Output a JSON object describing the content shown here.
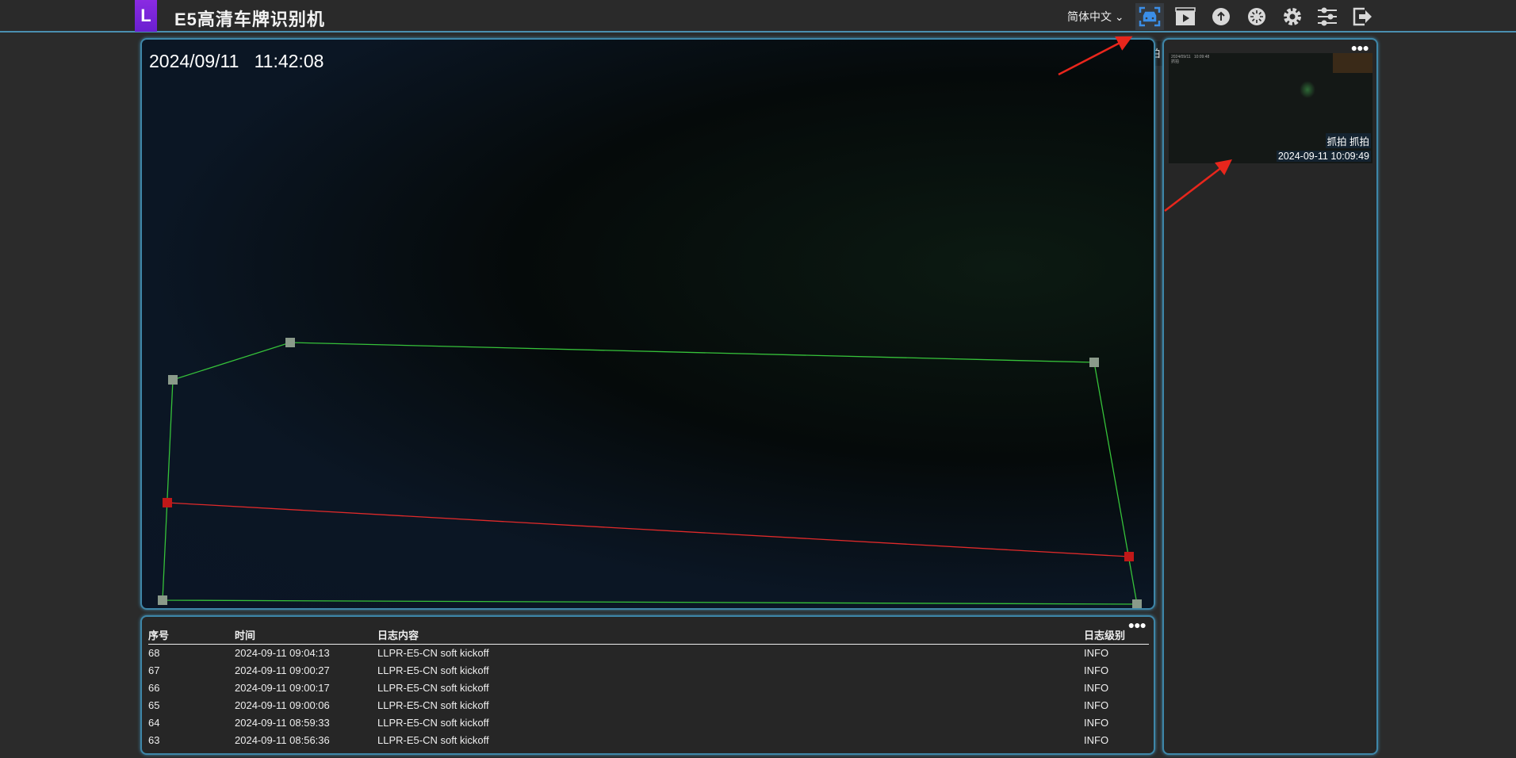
{
  "header": {
    "logo_letter": "L",
    "title": "E5高清车牌识别机",
    "language": "简体中文",
    "icons": [
      "capture-car-icon",
      "video-playback-icon",
      "upload-icon",
      "loading-icon",
      "settings-icon",
      "sliders-icon",
      "logout-icon"
    ],
    "tooltip": "抓拍",
    "accent": "#3b8ee8"
  },
  "video": {
    "timestamp": "2024/09/11   11:42:08"
  },
  "snapshot": {
    "mini_timestamp": "2024/09/11   10:09:48",
    "mini_label": "抓拍",
    "caption": "抓拍 抓拍",
    "time": "2024-09-11 10:09:49"
  },
  "log": {
    "columns": [
      "序号",
      "时间",
      "日志内容",
      "日志级别"
    ],
    "rows": [
      [
        "68",
        "2024-09-11 09:04:13",
        "LLPR-E5-CN soft kickoff",
        "INFO"
      ],
      [
        "67",
        "2024-09-11 09:00:27",
        "LLPR-E5-CN soft kickoff",
        "INFO"
      ],
      [
        "66",
        "2024-09-11 09:00:17",
        "LLPR-E5-CN soft kickoff",
        "INFO"
      ],
      [
        "65",
        "2024-09-11 09:00:06",
        "LLPR-E5-CN soft kickoff",
        "INFO"
      ],
      [
        "64",
        "2024-09-11 08:59:33",
        "LLPR-E5-CN soft kickoff",
        "INFO"
      ],
      [
        "63",
        "2024-09-11 08:56:36",
        "LLPR-E5-CN soft kickoff",
        "INFO"
      ]
    ]
  }
}
